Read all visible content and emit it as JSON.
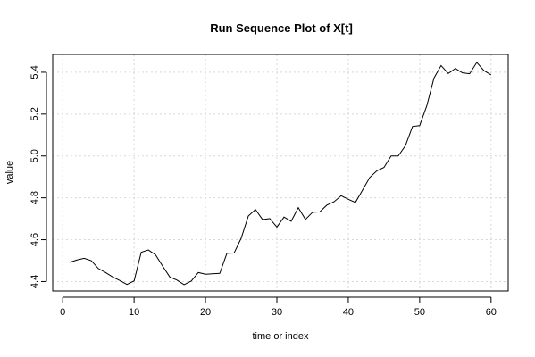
{
  "chart_data": {
    "type": "line",
    "title": "Run Sequence Plot of X[t]",
    "xlabel": "time or index",
    "ylabel": "value",
    "xlim": [
      -1.4,
      62.4
    ],
    "ylim": [
      4.355,
      5.485
    ],
    "xticks": [
      0,
      10,
      20,
      30,
      40,
      50,
      60
    ],
    "yticks": [
      4.4,
      4.6,
      4.8,
      5.0,
      5.2,
      5.4
    ],
    "xtick_labels": [
      "0",
      "10",
      "20",
      "30",
      "40",
      "50",
      "60"
    ],
    "ytick_labels": [
      "4.4",
      "4.6",
      "4.8",
      "5.0",
      "5.2",
      "5.4"
    ],
    "grid": true,
    "series": [
      {
        "x": [
          1,
          2,
          3,
          4,
          5,
          6,
          7,
          8,
          9,
          10,
          11,
          12,
          13,
          14,
          15,
          16,
          17,
          18,
          19,
          20,
          21,
          22,
          23,
          24,
          25,
          26,
          27,
          28,
          29,
          30,
          31,
          32,
          33,
          34,
          35,
          36,
          37,
          38,
          39,
          40,
          41,
          42,
          43,
          44,
          45,
          46,
          47,
          48,
          49,
          50,
          51,
          52,
          53,
          54,
          55,
          56,
          57,
          58,
          59,
          60
        ],
        "values": [
          4.492,
          4.503,
          4.511,
          4.5,
          4.462,
          4.443,
          4.422,
          4.405,
          4.386,
          4.403,
          4.54,
          4.551,
          4.528,
          4.474,
          4.422,
          4.407,
          4.385,
          4.402,
          4.443,
          4.435,
          4.437,
          4.439,
          4.535,
          4.536,
          4.607,
          4.713,
          4.744,
          4.696,
          4.701,
          4.66,
          4.708,
          4.688,
          4.753,
          4.697,
          4.731,
          4.733,
          4.765,
          4.781,
          4.81,
          4.793,
          4.778,
          4.837,
          4.897,
          4.929,
          4.945,
          5.0,
          5.0,
          5.049,
          5.141,
          5.145,
          5.24,
          5.372,
          5.432,
          5.394,
          5.418,
          5.397,
          5.393,
          5.447,
          5.408,
          5.387
        ]
      }
    ]
  }
}
